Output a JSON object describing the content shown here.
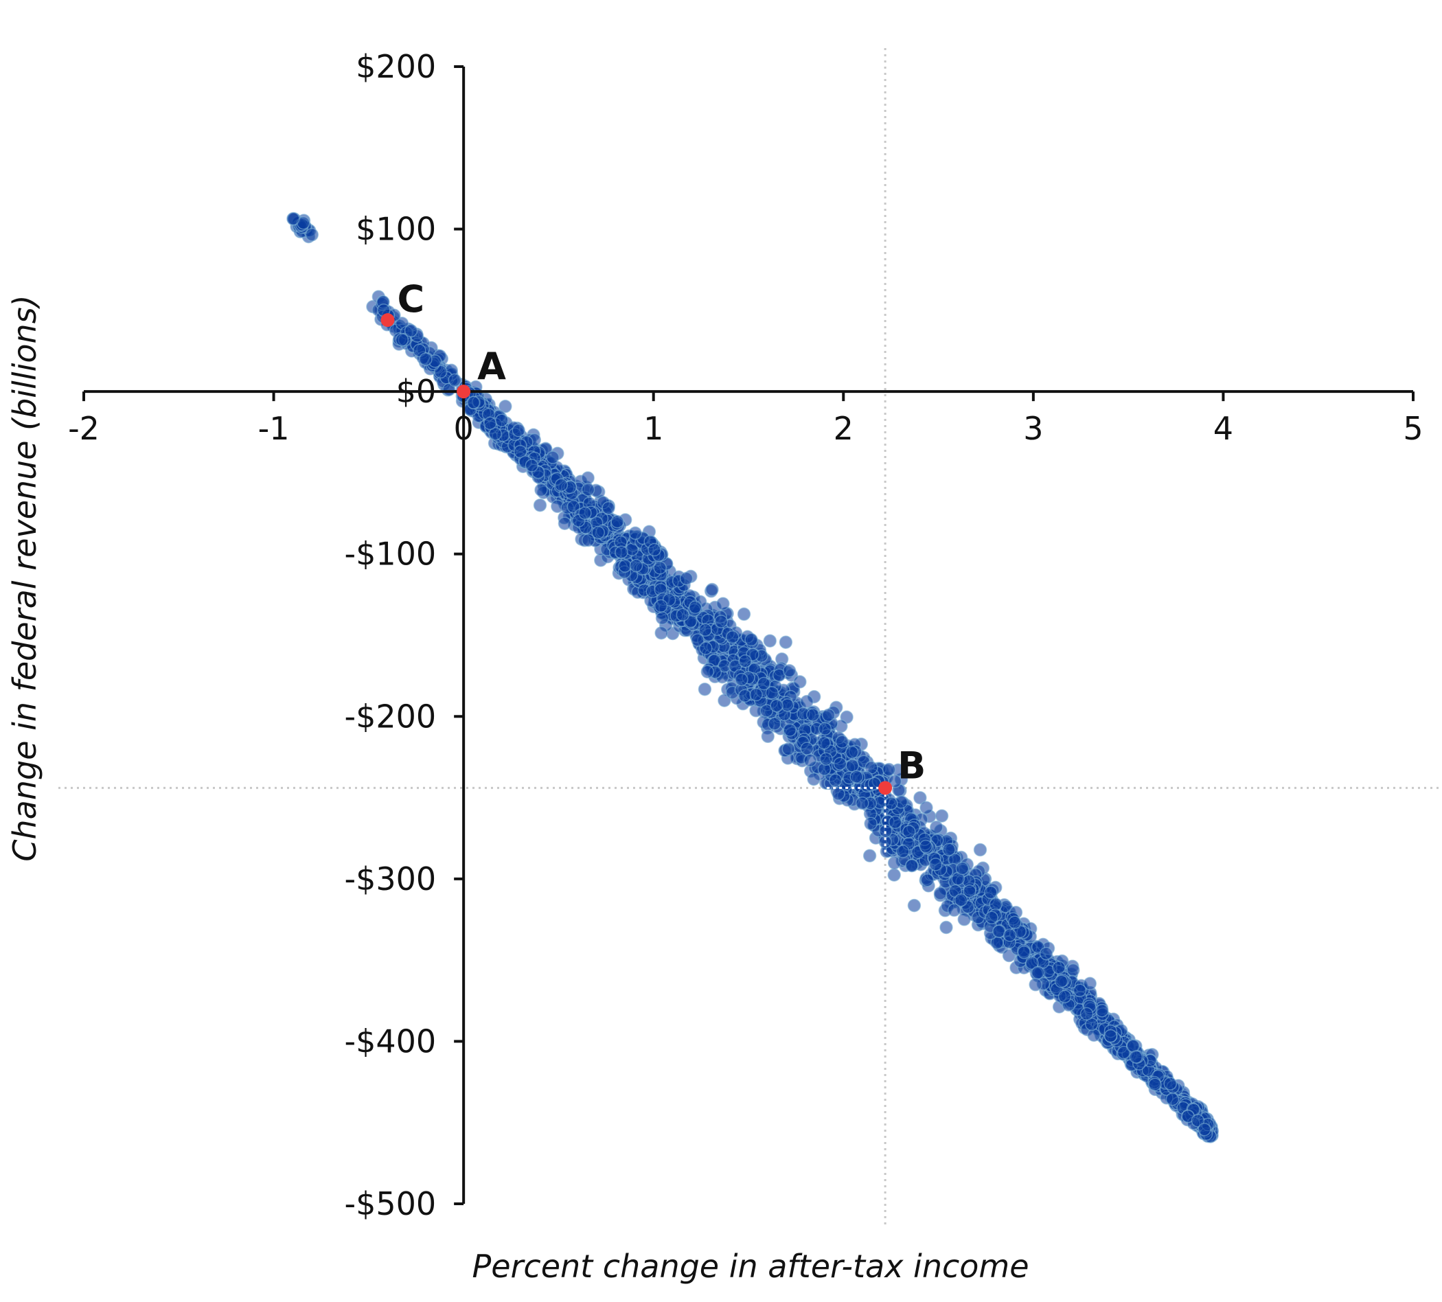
{
  "chart_data": {
    "type": "scatter",
    "title": "",
    "xlabel": "Percent change in after-tax income",
    "ylabel": "Change in federal revenue (billions)",
    "xlim": [
      -2,
      5
    ],
    "ylim": [
      -500,
      200
    ],
    "x_ticks": [
      {
        "value": -2,
        "label": "-2"
      },
      {
        "value": -1,
        "label": "-1"
      },
      {
        "value": 0,
        "label": "0"
      },
      {
        "value": 1,
        "label": "1"
      },
      {
        "value": 2,
        "label": "2"
      },
      {
        "value": 3,
        "label": "3"
      },
      {
        "value": 4,
        "label": "4"
      },
      {
        "value": 5,
        "label": "5"
      }
    ],
    "y_ticks": [
      {
        "value": 200,
        "label": "$200"
      },
      {
        "value": 100,
        "label": "$100"
      },
      {
        "value": 0,
        "label": "$0"
      },
      {
        "value": -100,
        "label": "-$100"
      },
      {
        "value": -200,
        "label": "-$200"
      },
      {
        "value": -300,
        "label": "-$300"
      },
      {
        "value": -400,
        "label": "-$400"
      },
      {
        "value": -500,
        "label": "-$500"
      }
    ],
    "grid": false,
    "colors": {
      "points": "#0a3d9e",
      "points_edge": "#7fb3d5",
      "highlight": "#f03c3c",
      "axis": "#111111",
      "reference_line": "#c8c8c8"
    },
    "scatter_band": {
      "main": [
        [
          0,
          0
        ],
        [
          3.94,
          -456
        ]
      ],
      "upper_left_cluster": [
        [
          -0.9,
          107
        ],
        [
          -0.82,
          97
        ]
      ],
      "near_c_cluster": [
        [
          -0.45,
          52
        ],
        [
          -0.05,
          5
        ]
      ],
      "side_cluster": [
        [
          0.9,
          -87
        ],
        [
          1.04,
          -100
        ]
      ]
    },
    "highlighted_points": [
      {
        "label": "A",
        "x": 0.0,
        "y": 0
      },
      {
        "label": "B",
        "x": 2.22,
        "y": -244
      },
      {
        "label": "C",
        "x": -0.4,
        "y": 44
      }
    ],
    "reference_lines": {
      "x": 2.22,
      "y": -244
    }
  }
}
